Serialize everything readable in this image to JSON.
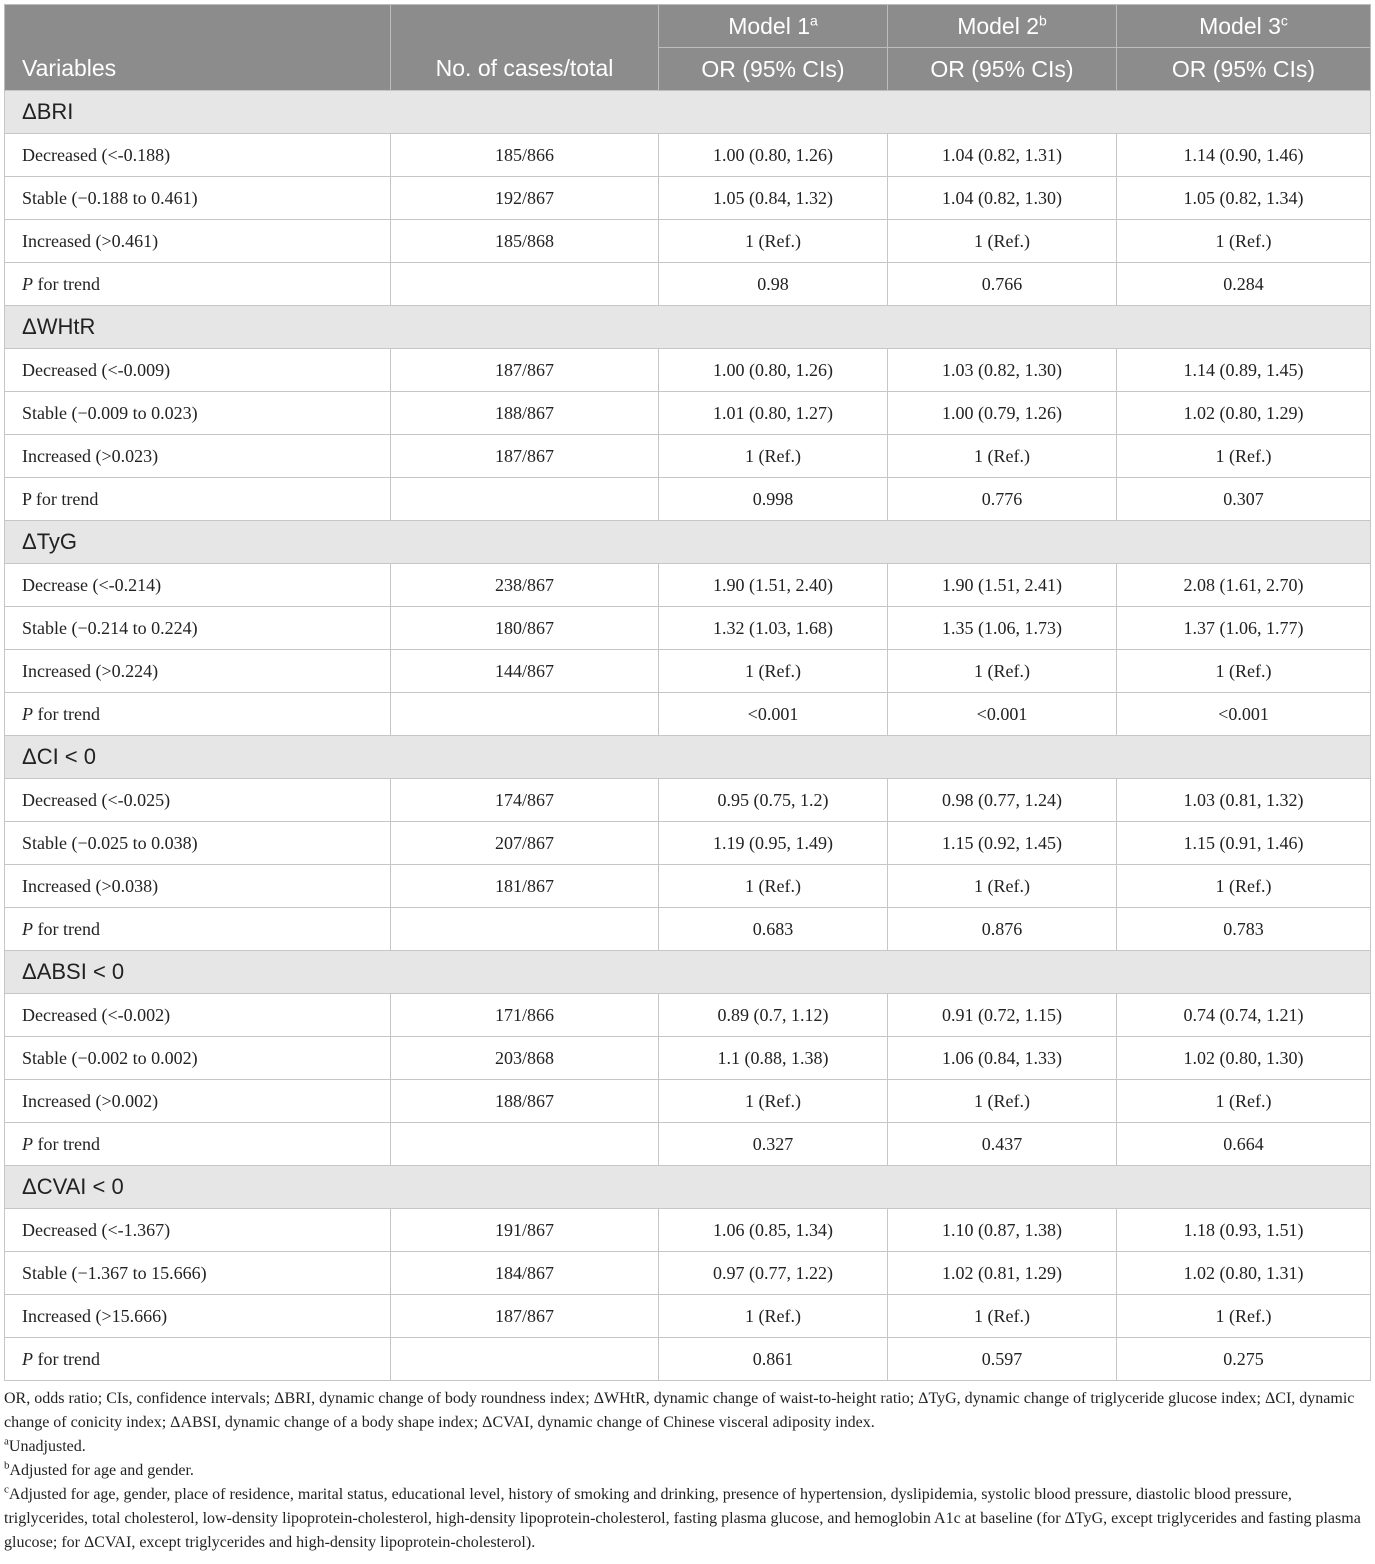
{
  "header": {
    "variables": "Variables",
    "cases": "No. of cases/total",
    "models": [
      {
        "name": "Model 1",
        "sup": "a",
        "sub": "OR (95% CIs)"
      },
      {
        "name": "Model 2",
        "sup": "b",
        "sub": "OR (95% CIs)"
      },
      {
        "name": "Model 3",
        "sup": "c",
        "sub": "OR (95% CIs)"
      }
    ]
  },
  "groups": [
    {
      "label": "ΔBRI",
      "rows": [
        {
          "label": "Decreased (<-0.188)",
          "cases": "185/866",
          "m1": "1.00 (0.80, 1.26)",
          "m2": "1.04 (0.82, 1.31)",
          "m3": "1.14 (0.90, 1.46)"
        },
        {
          "label": "Stable (−0.188 to 0.461)",
          "cases": "192/867",
          "m1": "1.05 (0.84, 1.32)",
          "m2": "1.04 (0.82, 1.30)",
          "m3": "1.05 (0.82, 1.34)"
        },
        {
          "label": "Increased (>0.461)",
          "cases": "185/868",
          "m1": "1 (Ref.)",
          "m2": "1 (Ref.)",
          "m3": "1 (Ref.)"
        },
        {
          "label_p": "P",
          "label_rest": " for trend",
          "cases": "",
          "m1": "0.98",
          "m2": "0.766",
          "m3": "0.284"
        }
      ]
    },
    {
      "label": "ΔWHtR",
      "rows": [
        {
          "label": "Decreased (<-0.009)",
          "cases": "187/867",
          "m1": "1.00 (0.80, 1.26)",
          "m2": "1.03 (0.82, 1.30)",
          "m3": "1.14 (0.89, 1.45)"
        },
        {
          "label": "Stable (−0.009 to 0.023)",
          "cases": "188/867",
          "m1": "1.01 (0.80, 1.27)",
          "m2": "1.00 (0.79, 1.26)",
          "m3": "1.02 (0.80, 1.29)"
        },
        {
          "label": "Increased (>0.023)",
          "cases": "187/867",
          "m1": "1 (Ref.)",
          "m2": "1 (Ref.)",
          "m3": "1 (Ref.)"
        },
        {
          "label": "P for trend",
          "cases": "",
          "m1": "0.998",
          "m2": "0.776",
          "m3": "0.307"
        }
      ]
    },
    {
      "label": "ΔTyG",
      "rows": [
        {
          "label": "Decrease (<-0.214)",
          "cases": "238/867",
          "m1": "1.90 (1.51, 2.40)",
          "m2": "1.90 (1.51, 2.41)",
          "m3": "2.08 (1.61, 2.70)"
        },
        {
          "label": "Stable (−0.214 to 0.224)",
          "cases": "180/867",
          "m1": "1.32 (1.03, 1.68)",
          "m2": "1.35 (1.06, 1.73)",
          "m3": "1.37 (1.06, 1.77)"
        },
        {
          "label": "Increased (>0.224)",
          "cases": "144/867",
          "m1": "1 (Ref.)",
          "m2": "1 (Ref.)",
          "m3": "1 (Ref.)"
        },
        {
          "label_p": "P",
          "label_rest": " for trend",
          "cases": "",
          "m1": "<0.001",
          "m2": "<0.001",
          "m3": "<0.001"
        }
      ]
    },
    {
      "label": "ΔCI < 0",
      "rows": [
        {
          "label": "Decreased (<-0.025)",
          "cases": "174/867",
          "m1": "0.95 (0.75, 1.2)",
          "m2": "0.98 (0.77, 1.24)",
          "m3": "1.03 (0.81, 1.32)"
        },
        {
          "label": "Stable (−0.025 to 0.038)",
          "cases": "207/867",
          "m1": "1.19 (0.95, 1.49)",
          "m2": "1.15 (0.92, 1.45)",
          "m3": "1.15 (0.91, 1.46)"
        },
        {
          "label": "Increased (>0.038)",
          "cases": "181/867",
          "m1": "1 (Ref.)",
          "m2": "1 (Ref.)",
          "m3": "1 (Ref.)"
        },
        {
          "label_p": "P",
          "label_rest": " for trend",
          "cases": "",
          "m1": "0.683",
          "m2": "0.876",
          "m3": "0.783"
        }
      ]
    },
    {
      "label": "ΔABSI < 0",
      "rows": [
        {
          "label": "Decreased (<-0.002)",
          "cases": "171/866",
          "m1": "0.89 (0.7, 1.12)",
          "m2": "0.91 (0.72, 1.15)",
          "m3": "0.74 (0.74, 1.21)"
        },
        {
          "label": "Stable (−0.002 to 0.002)",
          "cases": "203/868",
          "m1": "1.1 (0.88, 1.38)",
          "m2": "1.06 (0.84, 1.33)",
          "m3": "1.02 (0.80, 1.30)"
        },
        {
          "label": "Increased (>0.002)",
          "cases": "188/867",
          "m1": "1 (Ref.)",
          "m2": "1 (Ref.)",
          "m3": "1 (Ref.)"
        },
        {
          "label_p": "P",
          "label_rest": " for trend",
          "cases": "",
          "m1": "0.327",
          "m2": "0.437",
          "m3": "0.664"
        }
      ]
    },
    {
      "label": "ΔCVAI < 0",
      "rows": [
        {
          "label": "Decreased (<-1.367)",
          "cases": "191/867",
          "m1": "1.06 (0.85, 1.34)",
          "m2": "1.10 (0.87, 1.38)",
          "m3": "1.18 (0.93, 1.51)"
        },
        {
          "label": "Stable (−1.367 to 15.666)",
          "cases": "184/867",
          "m1": "0.97 (0.77, 1.22)",
          "m2": "1.02 (0.81, 1.29)",
          "m3": "1.02 (0.80, 1.31)"
        },
        {
          "label": "Increased (>15.666)",
          "cases": "187/867",
          "m1": "1 (Ref.)",
          "m2": "1 (Ref.)",
          "m3": "1 (Ref.)"
        },
        {
          "label_p": "P",
          "label_rest": " for trend",
          "cases": "",
          "m1": "0.861",
          "m2": "0.597",
          "m3": "0.275"
        }
      ]
    }
  ],
  "footnotes": {
    "abbrev": "OR, odds ratio; CIs, confidence intervals; ΔBRI, dynamic change of body roundness index; ΔWHtR, dynamic change of waist-to-height ratio; ΔTyG, dynamic change of triglyceride glucose index; ΔCI, dynamic change of conicity index; ΔABSI, dynamic change of a body shape index; ΔCVAI, dynamic change of Chinese visceral adiposity index.",
    "notes": [
      {
        "mark": "a",
        "text": "Unadjusted."
      },
      {
        "mark": "b",
        "text": "Adjusted for age and gender."
      },
      {
        "mark": "c",
        "text": "Adjusted for age, gender, place of residence, marital status, educational level, history of smoking and drinking, presence of hypertension, dyslipidemia, systolic blood pressure, diastolic blood pressure, triglycerides, total cholesterol, low-density lipoprotein-cholesterol, high-density lipoprotein-cholesterol, fasting plasma glucose, and hemoglobin A1c at baseline (for ΔTyG, except triglycerides and fasting plasma glucose; for ΔCVAI, except triglycerides and high-density lipoprotein-cholesterol)."
      }
    ]
  }
}
